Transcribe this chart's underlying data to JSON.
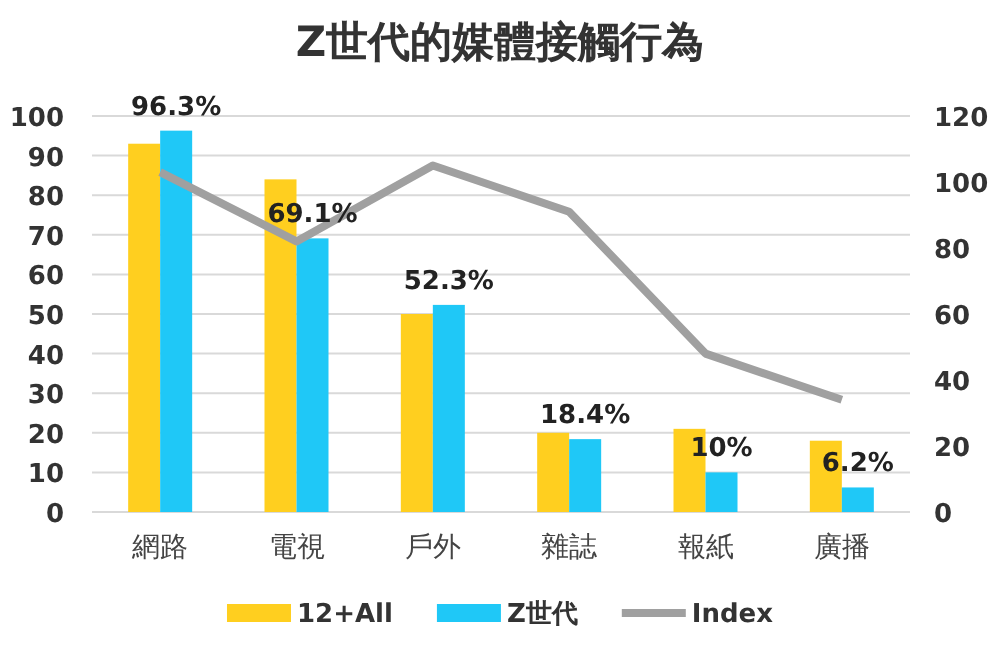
{
  "chart_data": {
    "type": "bar",
    "title": "Z世代的媒體接觸行為",
    "categories": [
      "網路",
      "電視",
      "戶外",
      "雜誌",
      "報紙",
      "廣播"
    ],
    "series": [
      {
        "name": "12+All",
        "color": "#ffcf1f",
        "values": [
          93,
          84,
          50,
          20,
          21,
          18
        ]
      },
      {
        "name": "Z世代",
        "color": "#1fc8f7",
        "values": [
          96.3,
          69.1,
          52.3,
          18.4,
          10,
          6.2
        ],
        "value_labels": [
          "96.3%",
          "69.1%",
          "52.3%",
          "18.4%",
          "10%",
          "6.2%"
        ]
      },
      {
        "name": "Index",
        "type": "line",
        "axis": "y2",
        "color": "#a0a0a0",
        "values": [
          103,
          82,
          105,
          91,
          48,
          34
        ]
      }
    ],
    "ylim": [
      0,
      100
    ],
    "yticks": [
      0,
      10,
      20,
      30,
      40,
      50,
      60,
      70,
      80,
      90,
      100
    ],
    "y2lim": [
      0,
      120
    ],
    "y2ticks": [
      0,
      20,
      40,
      60,
      80,
      100,
      120
    ],
    "grid": "y",
    "legend": "bottom",
    "marker": "none"
  }
}
